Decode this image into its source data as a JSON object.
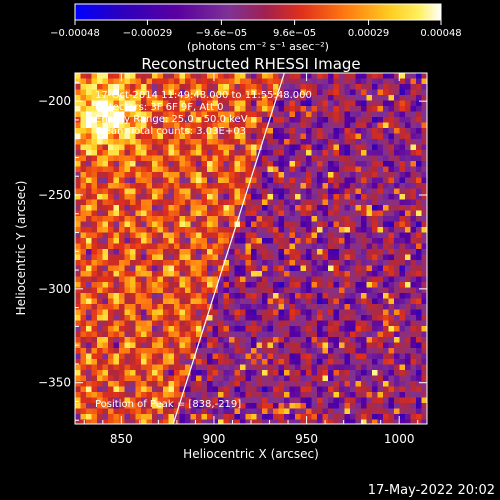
{
  "chart_data": {
    "type": "heatmap",
    "title": "Reconstructed RHESSI Image",
    "xlabel": "Heliocentric X (arcsec)",
    "ylabel": "Heliocentric Y (arcsec)",
    "xlim": [
      825,
      1015
    ],
    "ylim": [
      -372,
      -185
    ],
    "x_ticks": [
      850,
      900,
      950,
      1000
    ],
    "x_tick_labels": [
      "850",
      "900",
      "950",
      "1000"
    ],
    "y_ticks": [
      -200,
      -250,
      -300,
      -350
    ],
    "y_tick_labels": [
      "−200",
      "−250",
      "−300",
      "−350"
    ],
    "colorbar": {
      "range": [
        -0.00048,
        0.00048
      ],
      "ticks": [
        -0.00048,
        -0.00029,
        -9.6e-05,
        9.6e-05,
        0.00029,
        0.00048
      ],
      "tick_labels": [
        "−0.00048",
        "−0.00029",
        "−9.6e−05",
        "9.6e−05",
        "0.00029",
        "0.00048"
      ],
      "unit": "(photons cm⁻² s⁻¹ asec⁻²)"
    },
    "colormap": [
      "#0000ff",
      "#3a00b0",
      "#5a00a0",
      "#7e3296",
      "#b2283a",
      "#e0301a",
      "#ff7a10",
      "#ffcc20",
      "#fff060",
      "#ffffff"
    ],
    "annotations": [
      "17-Oct-2014 11:49:48.000 to 11:55:48.000",
      "Detectors: 3F 6F 9F, Att 0",
      "Energy Range: 25.0 - 50.0 keV",
      "Clean.    Total counts: 3.03E+03"
    ],
    "peak_label": "Position of Peak = [838,-219]",
    "peak_position": [
      838,
      -219
    ],
    "limb_line": [
      [
        878,
        -372
      ],
      [
        938,
        -185
      ]
    ]
  },
  "footer": {
    "timestamp": "17-May-2022 20:02"
  }
}
